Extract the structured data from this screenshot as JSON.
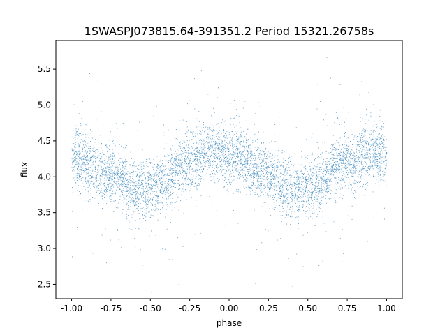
{
  "chart_data": {
    "type": "scatter",
    "title": "1SWASPJ073815.64-391351.2 Period 15321.26758s",
    "xlabel": "phase",
    "ylabel": "flux",
    "xlim": [
      -1.1,
      1.1
    ],
    "ylim": [
      2.3,
      5.9
    ],
    "xticks": [
      "-1.00",
      "-0.75",
      "-0.50",
      "-0.25",
      "0.00",
      "0.25",
      "0.50",
      "0.75",
      "1.00"
    ],
    "yticks": [
      "2.5",
      "3.0",
      "3.5",
      "4.0",
      "4.5",
      "5.0",
      "5.5"
    ],
    "grid": false,
    "marker_color": "#1f77b4",
    "series": [
      {
        "x_range": [
          -1.0,
          1.0
        ],
        "trend": {
          "phase": [
            -1.0,
            -0.75,
            -0.6,
            -0.5,
            -0.25,
            -0.1,
            0.0,
            0.25,
            0.4,
            0.5,
            0.75,
            0.9,
            1.0
          ],
          "flux": [
            4.25,
            4.05,
            3.85,
            3.85,
            4.2,
            4.35,
            4.33,
            4.05,
            3.8,
            3.85,
            4.2,
            4.35,
            4.3
          ]
        },
        "point_count": 9000
      }
    ]
  }
}
